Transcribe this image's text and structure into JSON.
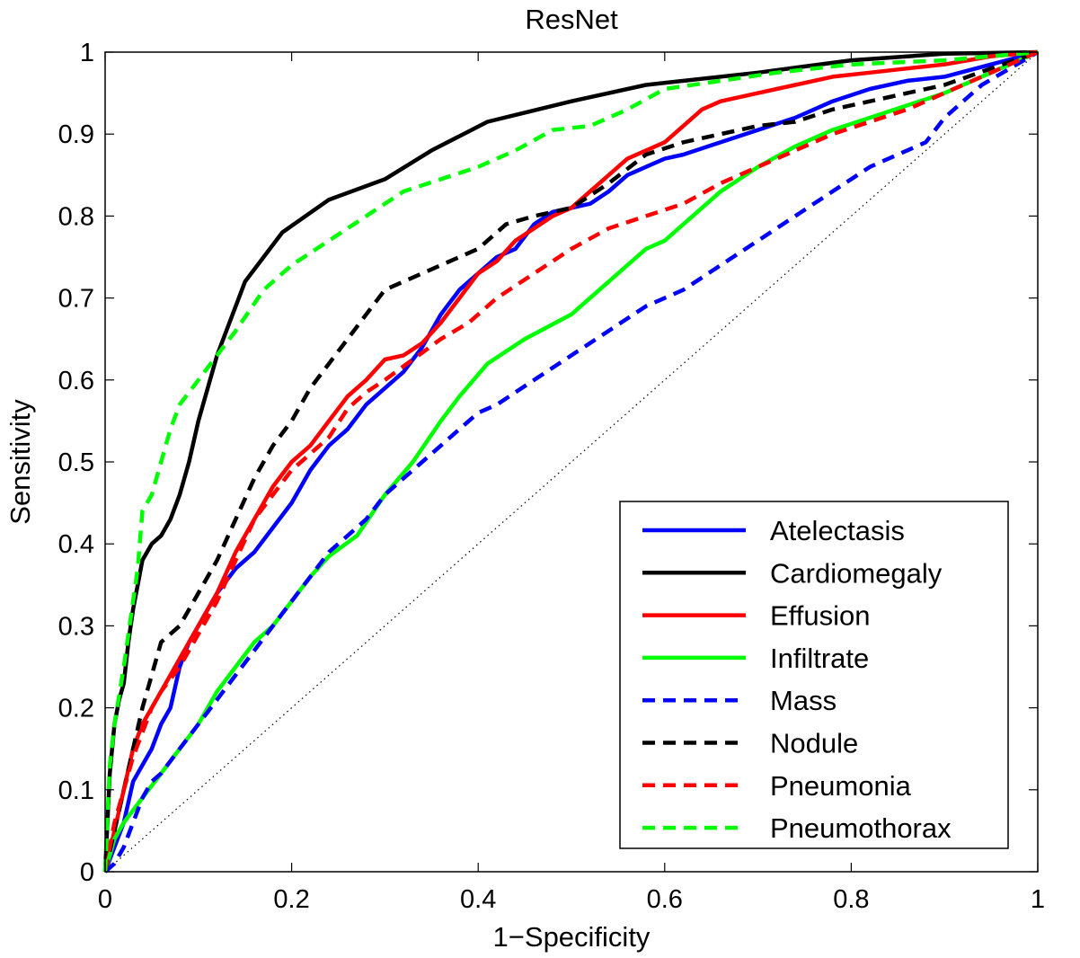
{
  "chart_data": {
    "type": "line",
    "title": "ResNet",
    "xlabel": "1−Specificity",
    "ylabel": "Sensitivity",
    "xlim": [
      0,
      1
    ],
    "ylim": [
      0,
      1
    ],
    "xticks": [
      "0",
      "0.2",
      "0.4",
      "0.6",
      "0.8",
      "1"
    ],
    "yticks": [
      "0",
      "0.1",
      "0.2",
      "0.3",
      "0.4",
      "0.5",
      "0.6",
      "0.7",
      "0.8",
      "0.9",
      "1"
    ],
    "grid": false,
    "legend_position": "bottom-right",
    "reference_line": {
      "style": "dotted",
      "color": "#000000",
      "points": [
        [
          0,
          0
        ],
        [
          1,
          1
        ]
      ]
    },
    "series": [
      {
        "name": "Atelectasis",
        "color": "#0000ff",
        "style": "solid",
        "points": [
          [
            0,
            0
          ],
          [
            0.01,
            0.03
          ],
          [
            0.02,
            0.06
          ],
          [
            0.03,
            0.11
          ],
          [
            0.04,
            0.13
          ],
          [
            0.05,
            0.15
          ],
          [
            0.06,
            0.18
          ],
          [
            0.07,
            0.2
          ],
          [
            0.08,
            0.25
          ],
          [
            0.09,
            0.28
          ],
          [
            0.1,
            0.3
          ],
          [
            0.12,
            0.34
          ],
          [
            0.14,
            0.37
          ],
          [
            0.16,
            0.39
          ],
          [
            0.18,
            0.42
          ],
          [
            0.2,
            0.45
          ],
          [
            0.22,
            0.49
          ],
          [
            0.24,
            0.52
          ],
          [
            0.26,
            0.54
          ],
          [
            0.28,
            0.57
          ],
          [
            0.3,
            0.59
          ],
          [
            0.32,
            0.61
          ],
          [
            0.34,
            0.64
          ],
          [
            0.36,
            0.68
          ],
          [
            0.38,
            0.71
          ],
          [
            0.4,
            0.73
          ],
          [
            0.42,
            0.75
          ],
          [
            0.44,
            0.76
          ],
          [
            0.46,
            0.79
          ],
          [
            0.48,
            0.805
          ],
          [
            0.5,
            0.81
          ],
          [
            0.52,
            0.815
          ],
          [
            0.54,
            0.83
          ],
          [
            0.56,
            0.85
          ],
          [
            0.58,
            0.86
          ],
          [
            0.6,
            0.87
          ],
          [
            0.62,
            0.875
          ],
          [
            0.66,
            0.89
          ],
          [
            0.7,
            0.905
          ],
          [
            0.74,
            0.92
          ],
          [
            0.78,
            0.94
          ],
          [
            0.82,
            0.955
          ],
          [
            0.86,
            0.965
          ],
          [
            0.9,
            0.97
          ],
          [
            0.95,
            0.985
          ],
          [
            1,
            1
          ]
        ]
      },
      {
        "name": "Cardiomegaly",
        "color": "#000000",
        "style": "solid",
        "points": [
          [
            0,
            0
          ],
          [
            0.005,
            0.12
          ],
          [
            0.01,
            0.18
          ],
          [
            0.015,
            0.21
          ],
          [
            0.02,
            0.23
          ],
          [
            0.025,
            0.28
          ],
          [
            0.03,
            0.32
          ],
          [
            0.035,
            0.35
          ],
          [
            0.04,
            0.38
          ],
          [
            0.05,
            0.4
          ],
          [
            0.06,
            0.41
          ],
          [
            0.07,
            0.43
          ],
          [
            0.08,
            0.46
          ],
          [
            0.09,
            0.5
          ],
          [
            0.1,
            0.55
          ],
          [
            0.12,
            0.63
          ],
          [
            0.15,
            0.72
          ],
          [
            0.19,
            0.78
          ],
          [
            0.24,
            0.82
          ],
          [
            0.3,
            0.845
          ],
          [
            0.35,
            0.88
          ],
          [
            0.41,
            0.915
          ],
          [
            0.5,
            0.94
          ],
          [
            0.58,
            0.96
          ],
          [
            0.7,
            0.975
          ],
          [
            0.8,
            0.99
          ],
          [
            0.9,
            0.998
          ],
          [
            1,
            1
          ]
        ]
      },
      {
        "name": "Effusion",
        "color": "#ff0000",
        "style": "solid",
        "points": [
          [
            0,
            0
          ],
          [
            0.01,
            0.05
          ],
          [
            0.02,
            0.1
          ],
          [
            0.03,
            0.15
          ],
          [
            0.04,
            0.18
          ],
          [
            0.05,
            0.2
          ],
          [
            0.06,
            0.22
          ],
          [
            0.07,
            0.24
          ],
          [
            0.08,
            0.26
          ],
          [
            0.1,
            0.3
          ],
          [
            0.12,
            0.34
          ],
          [
            0.14,
            0.39
          ],
          [
            0.16,
            0.43
          ],
          [
            0.18,
            0.47
          ],
          [
            0.2,
            0.5
          ],
          [
            0.22,
            0.52
          ],
          [
            0.24,
            0.55
          ],
          [
            0.26,
            0.58
          ],
          [
            0.28,
            0.6
          ],
          [
            0.3,
            0.625
          ],
          [
            0.32,
            0.63
          ],
          [
            0.34,
            0.645
          ],
          [
            0.36,
            0.67
          ],
          [
            0.38,
            0.7
          ],
          [
            0.4,
            0.73
          ],
          [
            0.42,
            0.745
          ],
          [
            0.44,
            0.77
          ],
          [
            0.46,
            0.785
          ],
          [
            0.48,
            0.8
          ],
          [
            0.5,
            0.81
          ],
          [
            0.52,
            0.83
          ],
          [
            0.54,
            0.85
          ],
          [
            0.56,
            0.87
          ],
          [
            0.58,
            0.88
          ],
          [
            0.6,
            0.89
          ],
          [
            0.62,
            0.91
          ],
          [
            0.64,
            0.93
          ],
          [
            0.66,
            0.94
          ],
          [
            0.7,
            0.95
          ],
          [
            0.74,
            0.96
          ],
          [
            0.78,
            0.97
          ],
          [
            0.82,
            0.975
          ],
          [
            0.86,
            0.98
          ],
          [
            0.9,
            0.985
          ],
          [
            0.95,
            0.995
          ],
          [
            1,
            1
          ]
        ]
      },
      {
        "name": "Infiltrate",
        "color": "#00ff00",
        "style": "solid",
        "points": [
          [
            0,
            0
          ],
          [
            0.01,
            0.04
          ],
          [
            0.02,
            0.06
          ],
          [
            0.04,
            0.09
          ],
          [
            0.06,
            0.12
          ],
          [
            0.08,
            0.15
          ],
          [
            0.1,
            0.18
          ],
          [
            0.12,
            0.22
          ],
          [
            0.14,
            0.25
          ],
          [
            0.16,
            0.28
          ],
          [
            0.18,
            0.3
          ],
          [
            0.2,
            0.33
          ],
          [
            0.22,
            0.36
          ],
          [
            0.24,
            0.385
          ],
          [
            0.27,
            0.41
          ],
          [
            0.3,
            0.46
          ],
          [
            0.33,
            0.5
          ],
          [
            0.36,
            0.55
          ],
          [
            0.38,
            0.58
          ],
          [
            0.41,
            0.62
          ],
          [
            0.45,
            0.65
          ],
          [
            0.5,
            0.68
          ],
          [
            0.53,
            0.71
          ],
          [
            0.56,
            0.74
          ],
          [
            0.58,
            0.76
          ],
          [
            0.6,
            0.77
          ],
          [
            0.62,
            0.79
          ],
          [
            0.64,
            0.81
          ],
          [
            0.66,
            0.83
          ],
          [
            0.7,
            0.86
          ],
          [
            0.74,
            0.885
          ],
          [
            0.78,
            0.905
          ],
          [
            0.82,
            0.92
          ],
          [
            0.86,
            0.935
          ],
          [
            0.9,
            0.95
          ],
          [
            0.95,
            0.975
          ],
          [
            1,
            1
          ]
        ]
      },
      {
        "name": "Mass",
        "color": "#0000ff",
        "style": "dashed",
        "points": [
          [
            0,
            0
          ],
          [
            0.01,
            0.01
          ],
          [
            0.02,
            0.03
          ],
          [
            0.03,
            0.06
          ],
          [
            0.04,
            0.09
          ],
          [
            0.05,
            0.11
          ],
          [
            0.06,
            0.12
          ],
          [
            0.08,
            0.15
          ],
          [
            0.1,
            0.18
          ],
          [
            0.12,
            0.21
          ],
          [
            0.14,
            0.24
          ],
          [
            0.16,
            0.27
          ],
          [
            0.18,
            0.3
          ],
          [
            0.2,
            0.33
          ],
          [
            0.22,
            0.36
          ],
          [
            0.24,
            0.39
          ],
          [
            0.26,
            0.41
          ],
          [
            0.28,
            0.43
          ],
          [
            0.3,
            0.46
          ],
          [
            0.32,
            0.48
          ],
          [
            0.34,
            0.5
          ],
          [
            0.36,
            0.52
          ],
          [
            0.38,
            0.54
          ],
          [
            0.4,
            0.56
          ],
          [
            0.42,
            0.57
          ],
          [
            0.44,
            0.585
          ],
          [
            0.46,
            0.6
          ],
          [
            0.5,
            0.63
          ],
          [
            0.54,
            0.66
          ],
          [
            0.58,
            0.69
          ],
          [
            0.62,
            0.71
          ],
          [
            0.66,
            0.74
          ],
          [
            0.7,
            0.77
          ],
          [
            0.74,
            0.8
          ],
          [
            0.78,
            0.83
          ],
          [
            0.82,
            0.86
          ],
          [
            0.86,
            0.88
          ],
          [
            0.88,
            0.89
          ],
          [
            0.9,
            0.92
          ],
          [
            0.94,
            0.96
          ],
          [
            1,
            1
          ]
        ]
      },
      {
        "name": "Nodule",
        "color": "#000000",
        "style": "dashed",
        "points": [
          [
            0,
            0
          ],
          [
            0.01,
            0.05
          ],
          [
            0.02,
            0.1
          ],
          [
            0.03,
            0.15
          ],
          [
            0.04,
            0.2
          ],
          [
            0.05,
            0.24
          ],
          [
            0.06,
            0.28
          ],
          [
            0.08,
            0.3
          ],
          [
            0.1,
            0.34
          ],
          [
            0.12,
            0.38
          ],
          [
            0.14,
            0.43
          ],
          [
            0.16,
            0.48
          ],
          [
            0.18,
            0.52
          ],
          [
            0.2,
            0.55
          ],
          [
            0.22,
            0.59
          ],
          [
            0.24,
            0.62
          ],
          [
            0.26,
            0.65
          ],
          [
            0.28,
            0.68
          ],
          [
            0.3,
            0.71
          ],
          [
            0.34,
            0.73
          ],
          [
            0.38,
            0.75
          ],
          [
            0.4,
            0.76
          ],
          [
            0.43,
            0.79
          ],
          [
            0.46,
            0.8
          ],
          [
            0.5,
            0.81
          ],
          [
            0.54,
            0.84
          ],
          [
            0.58,
            0.875
          ],
          [
            0.62,
            0.89
          ],
          [
            0.66,
            0.9
          ],
          [
            0.7,
            0.91
          ],
          [
            0.74,
            0.915
          ],
          [
            0.78,
            0.93
          ],
          [
            0.82,
            0.94
          ],
          [
            0.86,
            0.95
          ],
          [
            0.9,
            0.96
          ],
          [
            0.95,
            0.98
          ],
          [
            1,
            1
          ]
        ]
      },
      {
        "name": "Pneumonia",
        "color": "#ff0000",
        "style": "dashed",
        "points": [
          [
            0,
            0
          ],
          [
            0.01,
            0.06
          ],
          [
            0.02,
            0.1
          ],
          [
            0.03,
            0.14
          ],
          [
            0.04,
            0.17
          ],
          [
            0.05,
            0.2
          ],
          [
            0.06,
            0.22
          ],
          [
            0.08,
            0.25
          ],
          [
            0.1,
            0.29
          ],
          [
            0.12,
            0.33
          ],
          [
            0.14,
            0.38
          ],
          [
            0.16,
            0.43
          ],
          [
            0.18,
            0.46
          ],
          [
            0.2,
            0.49
          ],
          [
            0.22,
            0.51
          ],
          [
            0.24,
            0.53
          ],
          [
            0.26,
            0.565
          ],
          [
            0.28,
            0.585
          ],
          [
            0.3,
            0.6
          ],
          [
            0.33,
            0.625
          ],
          [
            0.36,
            0.65
          ],
          [
            0.39,
            0.67
          ],
          [
            0.42,
            0.7
          ],
          [
            0.46,
            0.73
          ],
          [
            0.5,
            0.76
          ],
          [
            0.54,
            0.785
          ],
          [
            0.58,
            0.8
          ],
          [
            0.62,
            0.815
          ],
          [
            0.66,
            0.84
          ],
          [
            0.7,
            0.86
          ],
          [
            0.74,
            0.88
          ],
          [
            0.78,
            0.9
          ],
          [
            0.82,
            0.915
          ],
          [
            0.86,
            0.93
          ],
          [
            0.9,
            0.95
          ],
          [
            0.95,
            0.975
          ],
          [
            1,
            1
          ]
        ]
      },
      {
        "name": "Pneumothorax",
        "color": "#00ff00",
        "style": "dashed",
        "points": [
          [
            0,
            0
          ],
          [
            0.005,
            0.13
          ],
          [
            0.01,
            0.18
          ],
          [
            0.02,
            0.25
          ],
          [
            0.03,
            0.33
          ],
          [
            0.035,
            0.37
          ],
          [
            0.04,
            0.44
          ],
          [
            0.05,
            0.46
          ],
          [
            0.06,
            0.5
          ],
          [
            0.07,
            0.54
          ],
          [
            0.08,
            0.57
          ],
          [
            0.1,
            0.6
          ],
          [
            0.12,
            0.63
          ],
          [
            0.14,
            0.66
          ],
          [
            0.17,
            0.71
          ],
          [
            0.2,
            0.74
          ],
          [
            0.24,
            0.77
          ],
          [
            0.28,
            0.8
          ],
          [
            0.32,
            0.83
          ],
          [
            0.36,
            0.845
          ],
          [
            0.4,
            0.86
          ],
          [
            0.44,
            0.88
          ],
          [
            0.48,
            0.905
          ],
          [
            0.52,
            0.91
          ],
          [
            0.56,
            0.93
          ],
          [
            0.6,
            0.955
          ],
          [
            0.66,
            0.965
          ],
          [
            0.72,
            0.975
          ],
          [
            0.8,
            0.985
          ],
          [
            0.9,
            0.99
          ],
          [
            1,
            1
          ]
        ]
      }
    ]
  }
}
